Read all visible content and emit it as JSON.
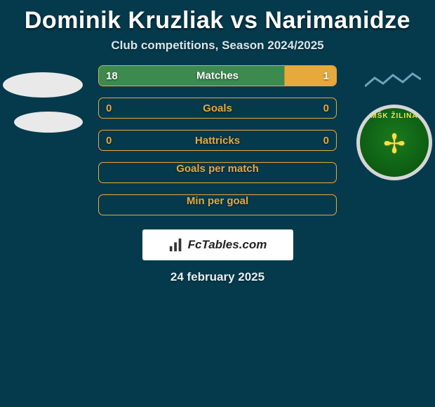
{
  "title": "Dominik Kruzliak vs Narimanidze",
  "subtitle": "Club competitions, Season 2024/2025",
  "date": "24 february 2025",
  "footer_brand": "FcTables.com",
  "club_badge": {
    "text": "MŠK ŽILINA"
  },
  "colors": {
    "background": "#053a4d",
    "accent_border": "#e7a93c",
    "segment_green": "#3c8a4e",
    "segment_yellow": "#e7a93c",
    "title_color": "#ffffff",
    "label_color_empty": "#e7a93c",
    "badge_ring": "#d6d6d6",
    "badge_fill": "#1a7a1e",
    "badge_text": "#f7e04a"
  },
  "rows": [
    {
      "label": "Matches",
      "left": "18",
      "right": "1",
      "left_width_pct": 78,
      "mid_fill": "green",
      "right_fill": "yellow",
      "has_values": true
    },
    {
      "label": "Goals",
      "left": "0",
      "right": "0",
      "left_width_pct": 0,
      "mid_fill": "none",
      "right_fill": "none",
      "has_values": true
    },
    {
      "label": "Hattricks",
      "left": "0",
      "right": "0",
      "left_width_pct": 0,
      "mid_fill": "none",
      "right_fill": "none",
      "has_values": true
    },
    {
      "label": "Goals per match",
      "has_values": false
    },
    {
      "label": "Min per goal",
      "has_values": false
    }
  ]
}
